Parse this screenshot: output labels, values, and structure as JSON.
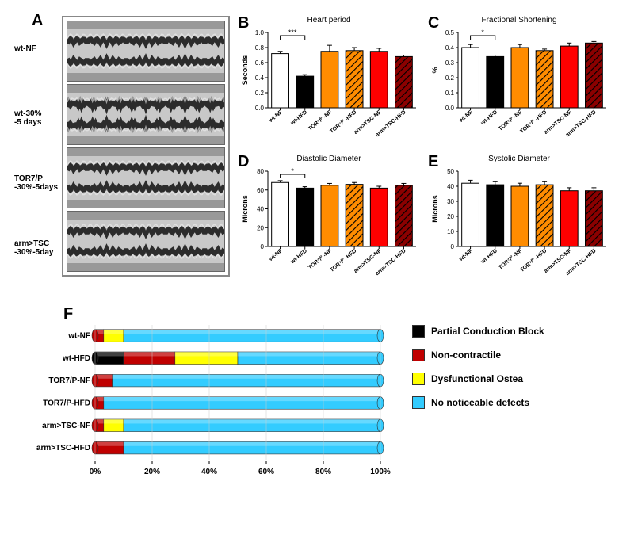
{
  "panels": {
    "A": {
      "label": "A",
      "rows": [
        {
          "label": "wt-NF"
        },
        {
          "label": "wt-30%\n-5 days"
        },
        {
          "label": "TOR7/P\n-30%-5days"
        },
        {
          "label": "arm>TSC\n-30%-5day"
        }
      ]
    },
    "B": {
      "label": "B",
      "title": "Heart period",
      "ylabel": "Seconds",
      "ymax": 1.0,
      "ytick": 0.2,
      "sig": {
        "bracket": [
          0,
          1
        ],
        "text": "***"
      },
      "categories": [
        "wt-NF",
        "wt-HFD",
        "TOR^7/P -NF",
        "TOR^7/P -HFD",
        "arm>TSC-NF",
        "arm>TSC-HFD"
      ],
      "values": [
        0.72,
        0.42,
        0.75,
        0.76,
        0.75,
        0.68
      ],
      "errors": [
        0.03,
        0.02,
        0.08,
        0.04,
        0.04,
        0.02
      ],
      "colors": [
        "#ffffff",
        "h#000000",
        "#ff8c00",
        "h#ff8c00",
        "#ff0000",
        "h#8b0000"
      ]
    },
    "C": {
      "label": "C",
      "title": "Fractional Shortening",
      "ylabel": "%",
      "ymax": 0.5,
      "ytick": 0.1,
      "sig": {
        "bracket": [
          0,
          1
        ],
        "text": "*"
      },
      "categories": [
        "wt-NF",
        "wt-HFD",
        "TOR^7/P -NF",
        "TOR^7/P -HFD",
        "arm>TSC-NF",
        "arm>TSC-HFD"
      ],
      "values": [
        0.4,
        0.34,
        0.4,
        0.38,
        0.41,
        0.43
      ],
      "errors": [
        0.02,
        0.01,
        0.02,
        0.01,
        0.02,
        0.01
      ],
      "colors": [
        "#ffffff",
        "h#000000",
        "#ff8c00",
        "h#ff8c00",
        "#ff0000",
        "h#8b0000"
      ]
    },
    "D": {
      "label": "D",
      "title": "Diastolic Diameter",
      "ylabel": "Microns",
      "ymax": 80,
      "ytick": 20,
      "sig": {
        "bracket": [
          0,
          1
        ],
        "text": "*"
      },
      "categories": [
        "wt-NF",
        "wt-HFD",
        "TOR^7/P -NF",
        "TOR^7/P -HFD",
        "arm>TSC-NF",
        "arm>TSC-HFD"
      ],
      "values": [
        68,
        62,
        65,
        66,
        62,
        65
      ],
      "errors": [
        2,
        1.5,
        2,
        2,
        2,
        2
      ],
      "colors": [
        "#ffffff",
        "h#000000",
        "#ff8c00",
        "h#ff8c00",
        "#ff0000",
        "h#8b0000"
      ]
    },
    "E": {
      "label": "E",
      "title": "Systolic Diameter",
      "ylabel": "Microns",
      "ymax": 50,
      "ytick": 10,
      "categories": [
        "wt-NF",
        "wt-HFD",
        "TOR^7/P -NF",
        "TOR^7/P -HFD",
        "arm>TSC-NF",
        "arm>TSC-HFD"
      ],
      "values": [
        42,
        41,
        40,
        41,
        37,
        37
      ],
      "errors": [
        2,
        2,
        2,
        2,
        2,
        2
      ],
      "colors": [
        "#ffffff",
        "h#000000",
        "#ff8c00",
        "h#ff8c00",
        "#ff0000",
        "h#8b0000"
      ]
    },
    "F": {
      "label": "F",
      "categories": [
        "wt-NF",
        "wt-HFD",
        "TOR7/P-NF",
        "TOR7/P-HFD",
        "arm>TSC-NF",
        "arm>TSC-HFD"
      ],
      "series": [
        "Partial Conduction Block",
        "Non-contractile",
        "Dysfunctional Ostea",
        "No noticeable defects"
      ],
      "colors": {
        "Partial Conduction Block": "#000000",
        "Non-contractile": "#c00000",
        "Dysfunctional Ostea": "#ffff00",
        "No noticeable defects": "#33ccff"
      },
      "data": {
        "wt-NF": [
          0,
          3,
          7,
          90
        ],
        "wt-HFD": [
          10,
          18,
          22,
          50
        ],
        "TOR7/P-NF": [
          0,
          6,
          0,
          94
        ],
        "TOR7/P-HFD": [
          0,
          3,
          0,
          97
        ],
        "arm>TSC-NF": [
          0,
          3,
          7,
          90
        ],
        "arm>TSC-HFD": [
          0,
          10,
          0,
          90
        ]
      },
      "xticks": [
        0,
        20,
        40,
        60,
        80,
        100
      ]
    }
  }
}
